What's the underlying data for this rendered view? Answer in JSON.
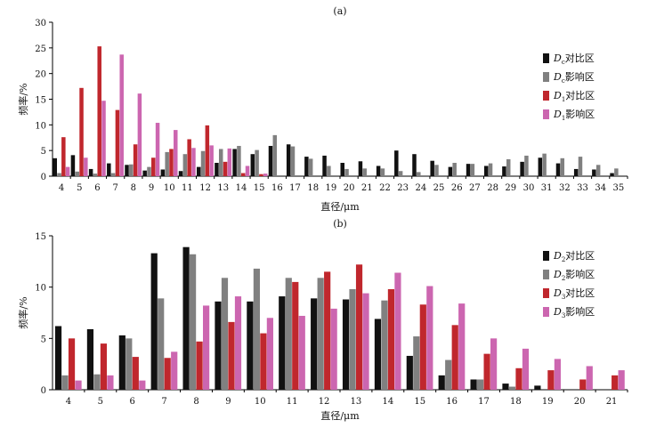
{
  "chart_data": [
    {
      "type": "bar",
      "title": "(a)",
      "xlabel": "直径/μm",
      "ylabel": "频率/%",
      "ylim": [
        0,
        30
      ],
      "yticks": [
        0,
        5,
        10,
        15,
        20,
        25,
        30
      ],
      "grid": false,
      "legend_position": "right",
      "categories": [
        "4",
        "5",
        "6",
        "7",
        "8",
        "9",
        "10",
        "11",
        "12",
        "13",
        "14",
        "15",
        "16",
        "17",
        "18",
        "19",
        "20",
        "21",
        "22",
        "23",
        "24",
        "25",
        "26",
        "27",
        "28",
        "29",
        "30",
        "31",
        "32",
        "33",
        "34",
        "35"
      ],
      "series": [
        {
          "name": "D",
          "sub": "c",
          "suffix": "对比区",
          "color": "#111111",
          "values": [
            3.5,
            4.1,
            1.4,
            2.5,
            2.2,
            1.1,
            1.3,
            1.0,
            1.8,
            2.6,
            5.3,
            4.3,
            5.9,
            6.2,
            3.8,
            4.0,
            2.6,
            2.9,
            2.0,
            5.0,
            4.3,
            3.0,
            1.8,
            2.4,
            2.0,
            1.9,
            2.8,
            3.6,
            2.5,
            1.4,
            1.3,
            0.6
          ]
        },
        {
          "name": "D",
          "sub": "c",
          "suffix": "影响区",
          "color": "#808080",
          "values": [
            0.6,
            0.9,
            0.5,
            0.6,
            2.3,
            1.8,
            4.7,
            4.3,
            4.9,
            5.3,
            5.9,
            5.1,
            8.0,
            5.8,
            3.4,
            2.0,
            1.4,
            1.5,
            1.5,
            1.0,
            0.8,
            2.2,
            2.6,
            2.4,
            2.5,
            3.3,
            4.0,
            4.4,
            3.5,
            3.8,
            2.2,
            1.5
          ]
        },
        {
          "name": "D",
          "sub": "1",
          "suffix": "对比区",
          "color": "#c0272d",
          "values": [
            7.6,
            17.2,
            25.3,
            12.9,
            6.2,
            3.6,
            5.3,
            7.2,
            9.9,
            2.8,
            0.6,
            0.4,
            0,
            0,
            0,
            0,
            0,
            0,
            0,
            0,
            0,
            0,
            0,
            0,
            0,
            0,
            0,
            0,
            0,
            0,
            0,
            0
          ]
        },
        {
          "name": "D",
          "sub": "1",
          "suffix": "影响区",
          "color": "#cc66b0",
          "values": [
            1.8,
            3.6,
            14.7,
            23.7,
            16.1,
            10.4,
            9.0,
            5.5,
            6.0,
            5.4,
            2.0,
            0.5,
            0,
            0,
            0,
            0,
            0,
            0,
            0,
            0,
            0,
            0,
            0,
            0,
            0,
            0,
            0,
            0,
            0,
            0,
            0,
            0
          ]
        }
      ]
    },
    {
      "type": "bar",
      "title": "(b)",
      "xlabel": "直径/μm",
      "ylabel": "频率/%",
      "ylim": [
        0,
        15
      ],
      "yticks": [
        0,
        5,
        10,
        15
      ],
      "grid": false,
      "legend_position": "right",
      "categories": [
        "4",
        "5",
        "6",
        "7",
        "8",
        "9",
        "10",
        "11",
        "12",
        "13",
        "14",
        "15",
        "16",
        "17",
        "18",
        "19",
        "20",
        "21"
      ],
      "series": [
        {
          "name": "D",
          "sub": "2",
          "suffix": "对比区",
          "color": "#111111",
          "values": [
            6.2,
            5.9,
            5.3,
            13.3,
            13.9,
            8.6,
            8.6,
            9.1,
            8.9,
            8.8,
            6.9,
            3.3,
            1.4,
            1.0,
            0.6,
            0.4,
            0,
            0
          ]
        },
        {
          "name": "D",
          "sub": "2",
          "suffix": "影响区",
          "color": "#808080",
          "values": [
            1.4,
            1.5,
            5.0,
            8.9,
            13.2,
            10.9,
            11.8,
            10.9,
            10.9,
            9.8,
            8.7,
            5.2,
            2.9,
            1.0,
            0.3,
            0,
            0,
            0
          ]
        },
        {
          "name": "D",
          "sub": "3",
          "suffix": "对比区",
          "color": "#c0272d",
          "values": [
            5.0,
            4.5,
            3.2,
            3.1,
            4.7,
            6.6,
            5.5,
            10.5,
            11.5,
            12.2,
            9.8,
            8.3,
            6.3,
            3.5,
            2.1,
            1.9,
            1.0,
            1.4
          ]
        },
        {
          "name": "D",
          "sub": "3",
          "suffix": "影响区",
          "color": "#cc66b0",
          "values": [
            0.9,
            1.4,
            0.9,
            3.7,
            8.2,
            9.1,
            7.0,
            7.2,
            7.9,
            9.4,
            11.4,
            10.1,
            8.4,
            5.0,
            4.0,
            3.0,
            2.3,
            1.9
          ]
        }
      ]
    }
  ]
}
